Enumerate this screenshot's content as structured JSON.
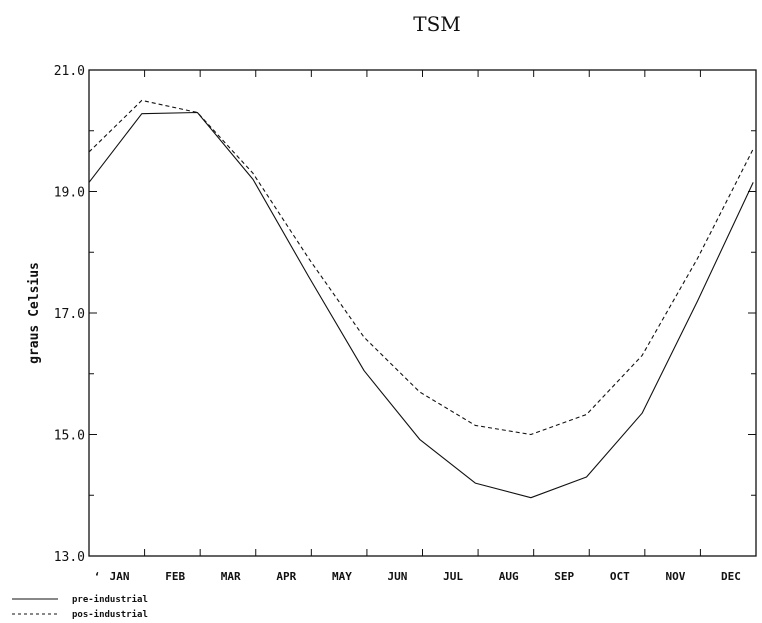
{
  "chart_data": {
    "type": "line",
    "title": "TSM",
    "xlabel": "",
    "ylabel": "graus Celsius",
    "categories": [
      "JAN",
      "FEB",
      "MAR",
      "APR",
      "MAY",
      "JUN",
      "JUL",
      "AUG",
      "SEP",
      "OCT",
      "NOV",
      "DEC"
    ],
    "ylim": [
      13.0,
      21.0
    ],
    "yticks": [
      "13.0",
      "15.0",
      "17.0",
      "19.0",
      "21.0"
    ],
    "x_start_label": "ʻ",
    "grid": false,
    "legend_position": "bottom-left",
    "series": [
      {
        "name": "pre-industrial",
        "style": "solid",
        "x": [
          0,
          0.95,
          1.95,
          2.95,
          3.95,
          4.95,
          5.95,
          6.95,
          7.95,
          8.95,
          9.95,
          10.95,
          11.95
        ],
        "values": [
          19.15,
          20.28,
          20.3,
          19.2,
          17.6,
          16.05,
          14.92,
          14.2,
          13.96,
          14.3,
          15.35,
          17.2,
          19.15
        ]
      },
      {
        "name": "pos-industrial",
        "style": "dashed",
        "x": [
          0,
          0.95,
          1.95,
          2.95,
          3.95,
          4.95,
          5.95,
          6.95,
          7.95,
          8.95,
          9.95,
          10.95,
          11.95
        ],
        "values": [
          19.65,
          20.5,
          20.3,
          19.3,
          17.9,
          16.6,
          15.7,
          15.15,
          15.0,
          15.33,
          16.3,
          17.9,
          19.7
        ]
      }
    ]
  }
}
